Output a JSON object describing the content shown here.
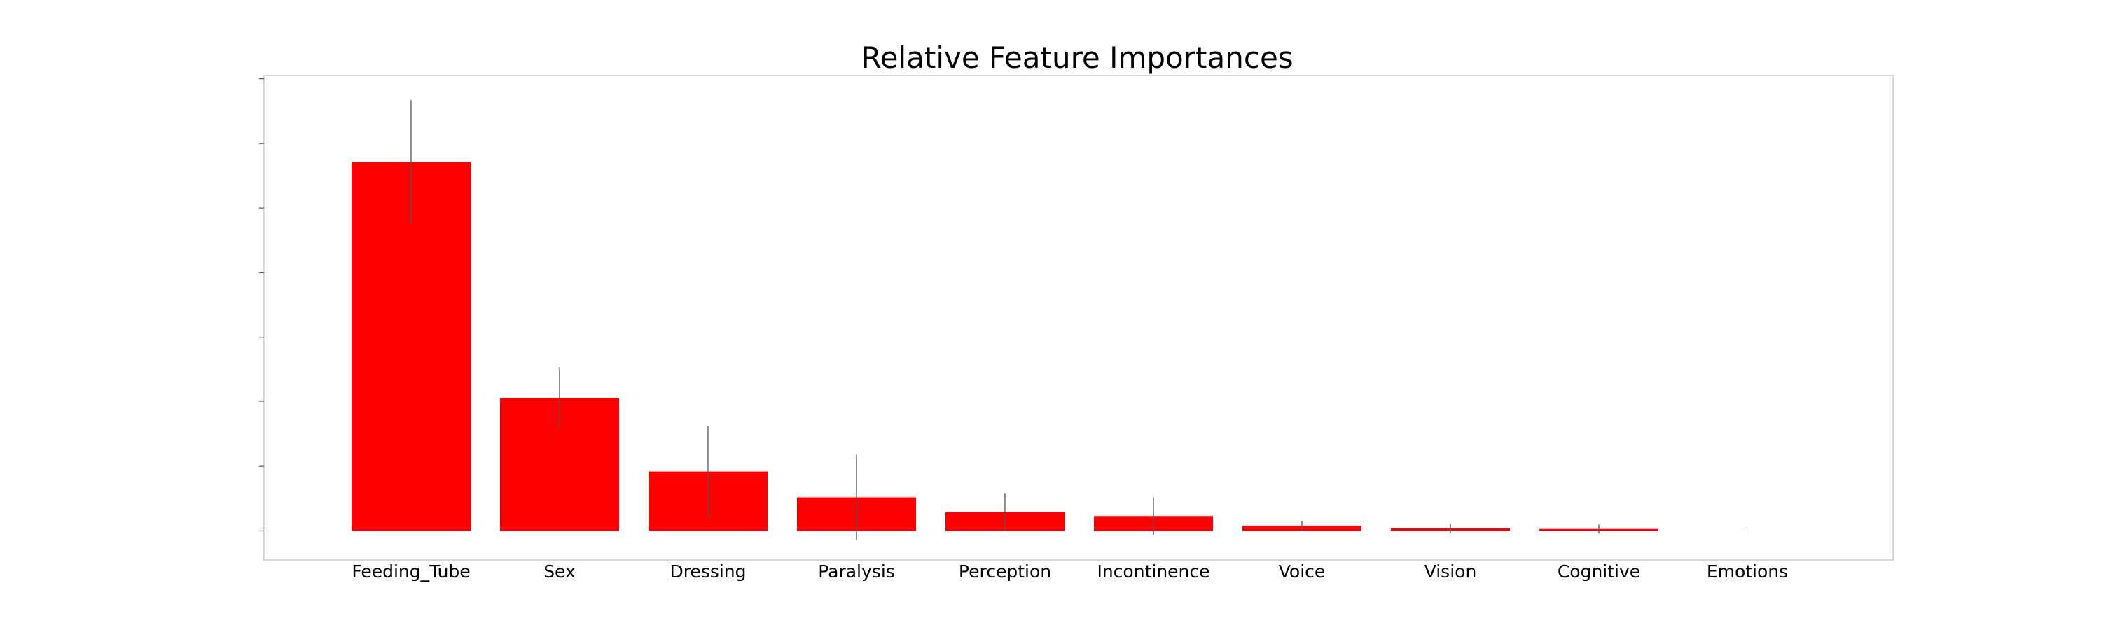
{
  "chart_data": {
    "type": "bar",
    "title": "Relative Feature Importances",
    "xlabel": "",
    "ylabel": "",
    "categories": [
      "Feeding_Tube",
      "Sex",
      "Dressing",
      "Paralysis",
      "Perception",
      "Incontinence",
      "Voice",
      "Vision",
      "Cognitive",
      "Emotions"
    ],
    "values": [
      0.571,
      0.206,
      0.092,
      0.052,
      0.029,
      0.023,
      0.008,
      0.004,
      0.003,
      0.0
    ],
    "errors": [
      0.096,
      0.047,
      0.071,
      0.066,
      0.029,
      0.029,
      0.008,
      0.007,
      0.007,
      0.0005
    ],
    "ylim": [
      -0.045,
      0.705
    ],
    "y_ticks": [
      0,
      0.1,
      0.2,
      0.3,
      0.4,
      0.5,
      0.6,
      0.7
    ],
    "grid": false,
    "bar_color": "#ff0000",
    "error_color": "#555555"
  }
}
